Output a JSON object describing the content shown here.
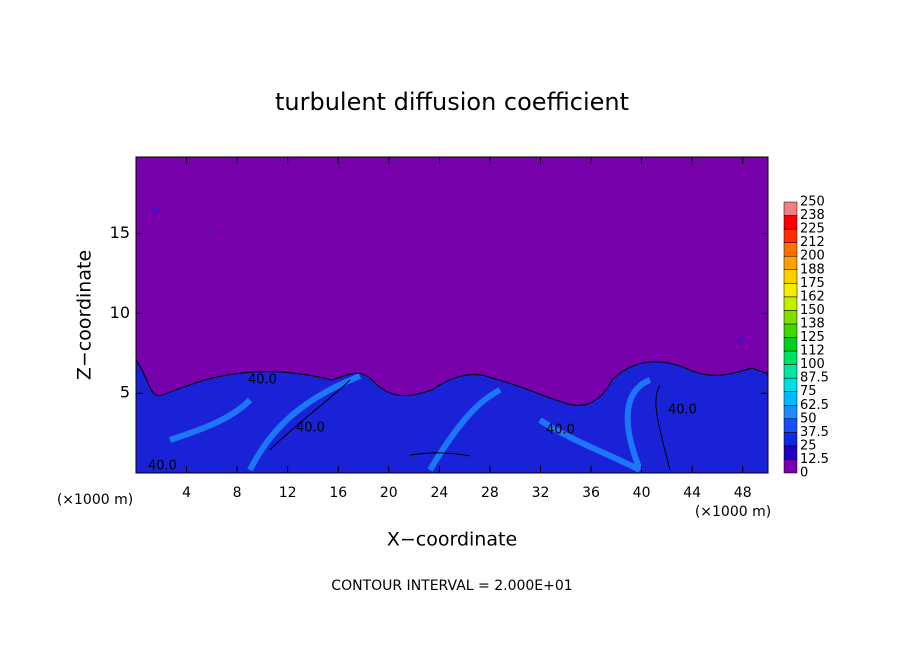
{
  "chart_data": {
    "type": "contour",
    "title": "turbulent diffusion coefficient",
    "xlabel": "X−coordinate",
    "ylabel": "Z−coordinate",
    "unit_label": "(×1000 m)",
    "note": "CONTOUR INTERVAL = 2.000E+01",
    "xlim": [
      0,
      50
    ],
    "xticks": [
      4,
      8,
      12,
      16,
      20,
      24,
      28,
      32,
      36,
      40,
      44,
      48
    ],
    "ylim": [
      0,
      19.8
    ],
    "yticks": [
      5,
      10,
      15
    ],
    "contour_labels": [
      "40.0",
      "40.0",
      "40.0",
      "40.0",
      "40.0"
    ],
    "colorbar": {
      "levels": [
        0,
        12.5,
        25,
        37.5,
        50,
        62.5,
        75,
        87.5,
        100,
        {
          "value": 112.5,
          "label": "112"
        },
        125,
        {
          "value": 137.5,
          "label": "138"
        },
        150,
        {
          "value": 162.5,
          "label": "162"
        },
        175,
        {
          "value": 187.5,
          "label": "188"
        },
        200,
        {
          "value": 212.5,
          "label": "212"
        },
        225,
        {
          "value": 237.5,
          "label": "238"
        },
        250
      ],
      "colors": [
        "#7700aa",
        "#2200c0",
        "#1028e0",
        "#1450ff",
        "#1e8cff",
        "#00bcff",
        "#00e0e0",
        "#00e8a0",
        "#00e060",
        "#00d020",
        "#40d800",
        "#80e000",
        "#c0f000",
        "#f0f000",
        "#ffd000",
        "#ffa000",
        "#ff7000",
        "#ff3000",
        "#ff0000",
        "#f08080"
      ]
    }
  }
}
